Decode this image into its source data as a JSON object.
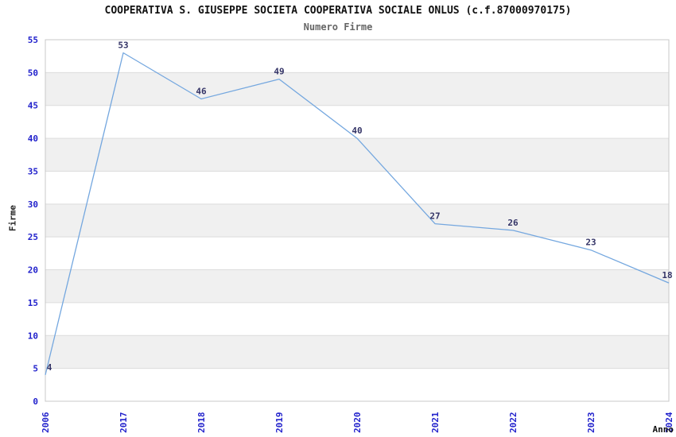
{
  "chart": {
    "title": "COOPERATIVA S. GIUSEPPE SOCIETA COOPERATIVA SOCIALE ONLUS (c.f.87000970175)",
    "subtitle": "Numero Firme",
    "ylabel": "Firme",
    "xlabel": "Anno"
  },
  "chart_data": {
    "type": "line",
    "title": "COOPERATIVA S. GIUSEPPE SOCIETA COOPERATIVA SOCIALE ONLUS (c.f.87000970175)",
    "subtitle": "Numero Firme",
    "xlabel": "Anno",
    "ylabel": "Firme",
    "categories": [
      "2006",
      "2017",
      "2018",
      "2019",
      "2020",
      "2021",
      "2022",
      "2023",
      "2024"
    ],
    "values": [
      4,
      53,
      46,
      49,
      40,
      27,
      26,
      23,
      18
    ],
    "ylim": [
      0,
      55
    ],
    "ytick_step": 5,
    "yticks": [
      0,
      5,
      10,
      15,
      20,
      25,
      30,
      35,
      40,
      45,
      50,
      55
    ],
    "grid": true,
    "legend": "none",
    "band_pattern": "alternating horizontal bands every 5 units, gray on 5-10,15-20,25-30,35-40,45-50",
    "colors": {
      "line": "#74A7DF",
      "tick_label": "#2222CC",
      "point_label": "#333366",
      "band": "#F0F0F0",
      "grid": "#DCDCDC",
      "border": "#C8C8C8",
      "title": "#111111",
      "subtitle": "#666666",
      "axis_title": "#111111",
      "background": "#FFFFFF"
    }
  }
}
